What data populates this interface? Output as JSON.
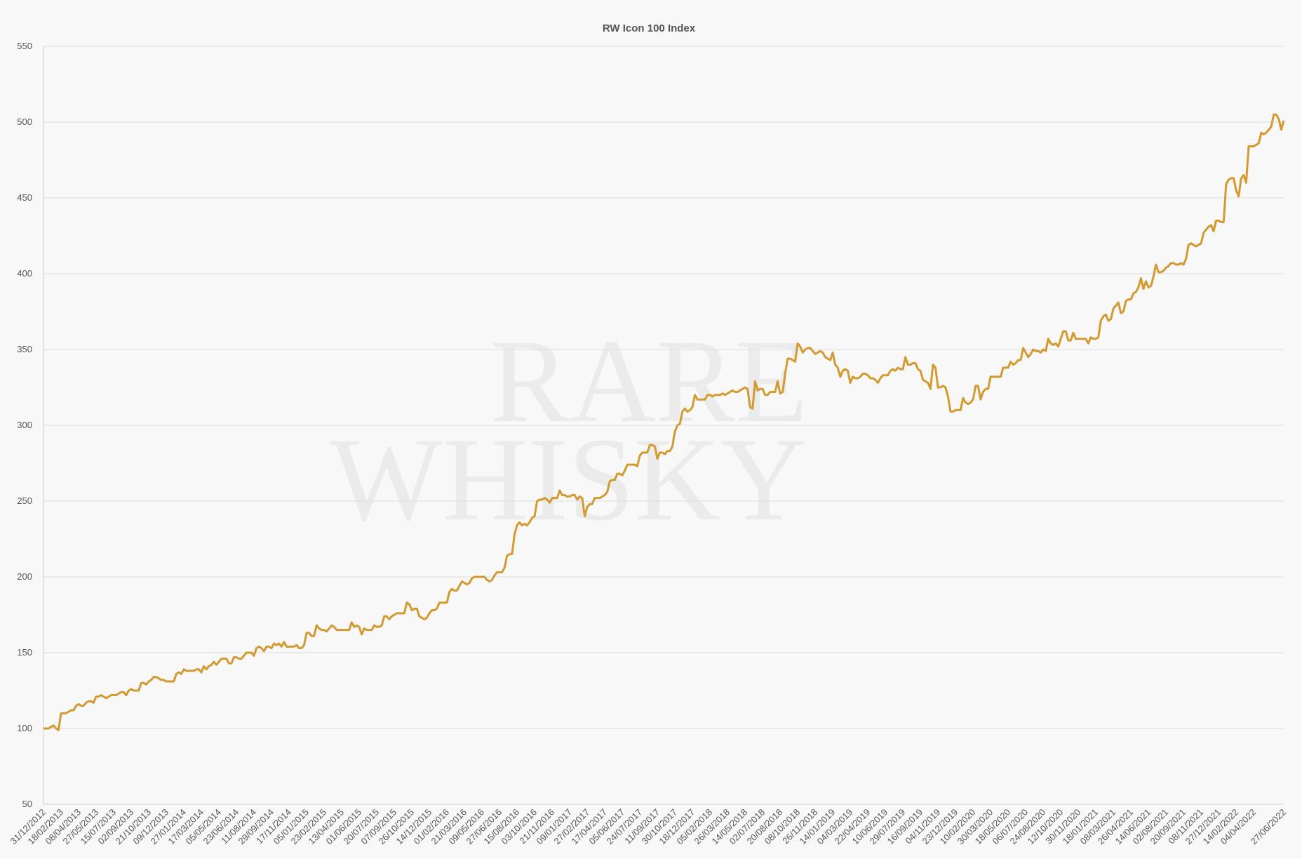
{
  "chart_data": {
    "type": "line",
    "title": "RW Icon 100 Index",
    "watermark": [
      "RARE",
      "WHISKY"
    ],
    "color": "#d29a2f",
    "ylim": [
      50,
      550
    ],
    "yticks": [
      50,
      100,
      150,
      200,
      250,
      300,
      350,
      400,
      450,
      500,
      550
    ],
    "grid": true,
    "categories": [
      "31/12/2012",
      null,
      null,
      null,
      null,
      null,
      null,
      "18/02/2013",
      null,
      null,
      null,
      null,
      null,
      null,
      "08/04/2013",
      null,
      null,
      null,
      null,
      null,
      null,
      "27/05/2013",
      null,
      null,
      null,
      null,
      null,
      null,
      "15/07/2013",
      null,
      null,
      null,
      null,
      null,
      null,
      "02/09/2013",
      null,
      null,
      null,
      null,
      null,
      null,
      "21/10/2013",
      null,
      null,
      null,
      null,
      null,
      null,
      "09/12/2013",
      null,
      null,
      null,
      null,
      null,
      null,
      "27/01/2014",
      null,
      null,
      null,
      null,
      null,
      null,
      "17/03/2014",
      null,
      null,
      null,
      null,
      null,
      null,
      "05/05/2014",
      null,
      null,
      null,
      null,
      null,
      null,
      "23/06/2014",
      null,
      null,
      null,
      null,
      null,
      null,
      "11/08/2014",
      null,
      null,
      null,
      null,
      null,
      null,
      "29/09/2014",
      null,
      null,
      null,
      null,
      null,
      null,
      "17/11/2014",
      null,
      null,
      null,
      null,
      null,
      null,
      "05/01/2015",
      null,
      null,
      null,
      null,
      null,
      null,
      "23/02/2015",
      null,
      null,
      null,
      null,
      null,
      null,
      "13/04/2015",
      null,
      null,
      null,
      null,
      null,
      null,
      "01/06/2015",
      null,
      null,
      null,
      null,
      null,
      null,
      "20/07/2015",
      null,
      null,
      null,
      null,
      null,
      null,
      "07/09/2015",
      null,
      null,
      null,
      null,
      null,
      null,
      "26/10/2015",
      null,
      null,
      null,
      null,
      null,
      null,
      "14/12/2015",
      null,
      null,
      null,
      null,
      null,
      null,
      "01/02/2016",
      null,
      null,
      null,
      null,
      null,
      null,
      "21/03/2016",
      null,
      null,
      null,
      null,
      null,
      null,
      "09/05/2016",
      null,
      null,
      null,
      null,
      null,
      null,
      "27/06/2016",
      null,
      null,
      null,
      null,
      null,
      null,
      "15/08/2016",
      null,
      null,
      null,
      null,
      null,
      null,
      "03/10/2016",
      null,
      null,
      null,
      null,
      null,
      null,
      "21/11/2016",
      null,
      null,
      null,
      null,
      null,
      null,
      "09/01/2017",
      null,
      null,
      null,
      null,
      null,
      null,
      "27/02/2017",
      null,
      null,
      null,
      null,
      null,
      null,
      "17/04/2017",
      null,
      null,
      null,
      null,
      null,
      null,
      "05/06/2017",
      null,
      null,
      null,
      null,
      null,
      null,
      "24/07/2017",
      null,
      null,
      null,
      null,
      null,
      null,
      "11/09/2017",
      null,
      null,
      null,
      null,
      null,
      null,
      "30/10/2017",
      null,
      null,
      null,
      null,
      null,
      null,
      "18/12/2017",
      null,
      null,
      null,
      null,
      null,
      null,
      "05/02/2018",
      null,
      null,
      null,
      null,
      null,
      null,
      "26/03/2018",
      null,
      null,
      null,
      null,
      null,
      null,
      "14/05/2018",
      null,
      null,
      null,
      null,
      null,
      null,
      "02/07/2018",
      null,
      null,
      null,
      null,
      null,
      null,
      "20/08/2018",
      null,
      null,
      null,
      null,
      null,
      null,
      "08/10/2018",
      null,
      null,
      null,
      null,
      null,
      null,
      "26/11/2018",
      null,
      null,
      null,
      null,
      null,
      null,
      "14/01/2019",
      null,
      null,
      null,
      null,
      null,
      null,
      "04/03/2019",
      null,
      null,
      null,
      null,
      null,
      null,
      "22/04/2019",
      null,
      null,
      null,
      null,
      null,
      null,
      "10/06/2019",
      null,
      null,
      null,
      null,
      null,
      null,
      "29/07/2019",
      null,
      null,
      null,
      null,
      null,
      null,
      "16/09/2019",
      null,
      null,
      null,
      null,
      null,
      null,
      "04/11/2019",
      null,
      null,
      null,
      null,
      null,
      null,
      "23/12/2019",
      null,
      null,
      null,
      null,
      null,
      null,
      "10/02/2020",
      null,
      null,
      null,
      null,
      null,
      null,
      "30/03/2020",
      null,
      null,
      null,
      null,
      null,
      null,
      "18/05/2020",
      null,
      null,
      null,
      null,
      null,
      null,
      "06/07/2020",
      null,
      null,
      null,
      null,
      null,
      null,
      "24/08/2020",
      null,
      null,
      null,
      null,
      null,
      null,
      "12/10/2020",
      null,
      null,
      null,
      null,
      null,
      null,
      "30/11/2020",
      null,
      null,
      null,
      null,
      null,
      null,
      "18/01/2021",
      null,
      null,
      null,
      null,
      null,
      null,
      "08/03/2021",
      null,
      null,
      null,
      null,
      null,
      null,
      "26/04/2021",
      null,
      null,
      null,
      null,
      null,
      null,
      "14/06/2021",
      null,
      null,
      null,
      null,
      null,
      null,
      "02/08/2021",
      null,
      null,
      null,
      null,
      null,
      null,
      "20/09/2021",
      null,
      null,
      null,
      null,
      null,
      null,
      "08/11/2021",
      null,
      null,
      null,
      null,
      null,
      null,
      "27/12/2021",
      null,
      null,
      null,
      null,
      null,
      null,
      "14/02/2022",
      null,
      null,
      null,
      null,
      null,
      null,
      "04/04/2022",
      null,
      null,
      null,
      null,
      null,
      null,
      null,
      null,
      null,
      null,
      null,
      "27/06/2022"
    ],
    "values": [
      100,
      100,
      100,
      101,
      102,
      100,
      99,
      110,
      110,
      110,
      111,
      112,
      112,
      115,
      116,
      115,
      115,
      117,
      118,
      118,
      117,
      121,
      121,
      122,
      121,
      120,
      121,
      122,
      122,
      122,
      123,
      124,
      124,
      122,
      125,
      126,
      125,
      125,
      125,
      130,
      130,
      129,
      131,
      132,
      134,
      134,
      133,
      132,
      132,
      131,
      131,
      131,
      131,
      136,
      137,
      136,
      139,
      138,
      138,
      138,
      138,
      139,
      139,
      137,
      141,
      139,
      141,
      142,
      144,
      142,
      144,
      146,
      146,
      146,
      143,
      143,
      147,
      147,
      146,
      146,
      148,
      150,
      150,
      150,
      148,
      153,
      154,
      153,
      151,
      154,
      154,
      153,
      156,
      155,
      156,
      154,
      157,
      154,
      154,
      154,
      154,
      155,
      153,
      153,
      155,
      163,
      163,
      161,
      161,
      168,
      166,
      165,
      165,
      164,
      166,
      168,
      167,
      165,
      165,
      165,
      165,
      165,
      165,
      170,
      167,
      168,
      167,
      162,
      166,
      165,
      165,
      165,
      168,
      167,
      167,
      168,
      174,
      174,
      172,
      174,
      175,
      176,
      176,
      176,
      176,
      183,
      182,
      178,
      179,
      179,
      174,
      173,
      172,
      173,
      176,
      178,
      178,
      179,
      183,
      183,
      183,
      183,
      190,
      192,
      191,
      191,
      194,
      197,
      196,
      195,
      196,
      199,
      200,
      200,
      200,
      200,
      200,
      198,
      197,
      198,
      201,
      203,
      203,
      203,
      206,
      214,
      215,
      215,
      228,
      234,
      236,
      234,
      235,
      234,
      236,
      239,
      240,
      250,
      251,
      251,
      252,
      251,
      249,
      252,
      252,
      252,
      257,
      254,
      254,
      253,
      253,
      254,
      254,
      251,
      253,
      252,
      240,
      246,
      248,
      248,
      252,
      252,
      252,
      253,
      254,
      256,
      263,
      264,
      264,
      268,
      268,
      267,
      270,
      274,
      274,
      274,
      274,
      273,
      280,
      282,
      282,
      282,
      287,
      287,
      286,
      278,
      282,
      282,
      281,
      283,
      283,
      286,
      296,
      300,
      301,
      309,
      311,
      309,
      310,
      312,
      320,
      317,
      317,
      317,
      317,
      320,
      320,
      319,
      320,
      320,
      320,
      321,
      320,
      321,
      322,
      323,
      322,
      322,
      323,
      324,
      325,
      324,
      312,
      311,
      329,
      323,
      324,
      324,
      320,
      320,
      322,
      322,
      322,
      329,
      321,
      322,
      334,
      344,
      344,
      343,
      342,
      354,
      352,
      348,
      350,
      351,
      351,
      349,
      347,
      348,
      349,
      348,
      345,
      344,
      343,
      348,
      340,
      338,
      332,
      336,
      337,
      336,
      328,
      332,
      331,
      331,
      332,
      334,
      334,
      333,
      331,
      331,
      330,
      328,
      331,
      333,
      333,
      333,
      336,
      337,
      336,
      338,
      337,
      337,
      345,
      340,
      340,
      341,
      341,
      337,
      336,
      330,
      329,
      328,
      324,
      340,
      338,
      325,
      325,
      326,
      325,
      319,
      309,
      309,
      310,
      310,
      310,
      318,
      315,
      314,
      315,
      317,
      326,
      326,
      317,
      322,
      324,
      324,
      332,
      332,
      332,
      332,
      332,
      338,
      338,
      338,
      342,
      340,
      341,
      343,
      343,
      351,
      348,
      345,
      347,
      350,
      349,
      349,
      348,
      350,
      349,
      357,
      354,
      353,
      354,
      352,
      357,
      362,
      362,
      356,
      356,
      361,
      357,
      357,
      357,
      357,
      357,
      354,
      358,
      357,
      357,
      358,
      369,
      372,
      373,
      369,
      370,
      377,
      379,
      381,
      374,
      375,
      382,
      383,
      383,
      387,
      388,
      391,
      397,
      390,
      395,
      391,
      392,
      398,
      406,
      401,
      401,
      402,
      404,
      405,
      407,
      407,
      406,
      406,
      407,
      406,
      410,
      419,
      420,
      419,
      418,
      419,
      420,
      427,
      429,
      431,
      432,
      428,
      435,
      435,
      434,
      434,
      459,
      462,
      463,
      463,
      455,
      451,
      463,
      465,
      460,
      484,
      484,
      484,
      485,
      486,
      493,
      492,
      493,
      495,
      497,
      505,
      505,
      502,
      495,
      501
    ]
  }
}
